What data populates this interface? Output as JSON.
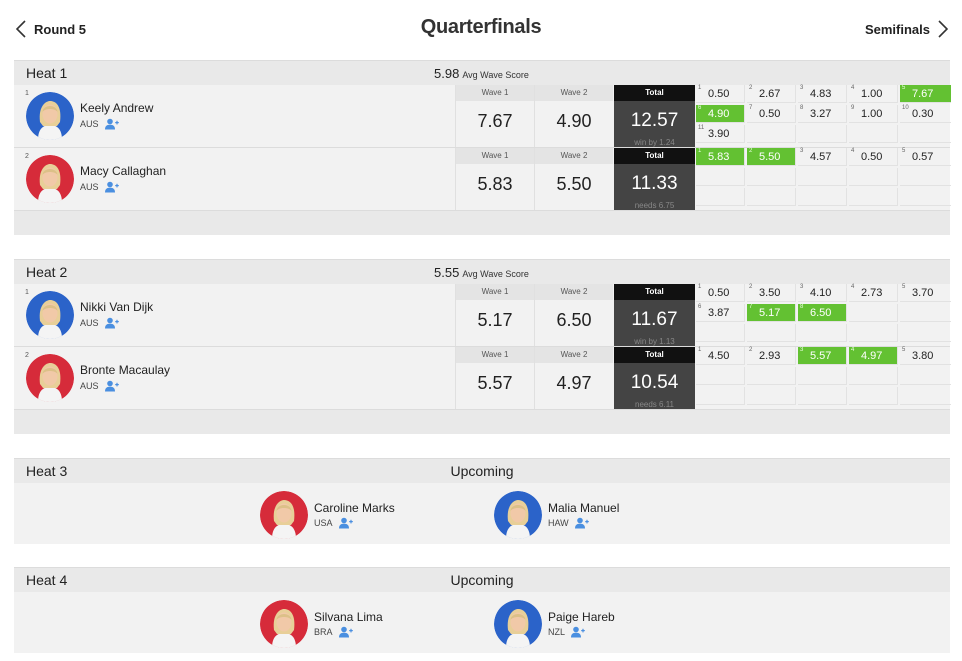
{
  "nav": {
    "prev_label": "Round 5",
    "title": "Quarterfinals",
    "next_label": "Semifinals"
  },
  "labels": {
    "wave1": "Wave 1",
    "wave2": "Wave 2",
    "total": "Total",
    "avg": "Avg Wave Score",
    "upcoming": "Upcoming"
  },
  "heats": [
    {
      "name": "Heat 1",
      "avg": "5.98",
      "surfers": [
        {
          "seed": "1",
          "name": "Keely Andrew",
          "country": "AUS",
          "jersey": "blue",
          "wave1": "7.67",
          "wave2": "4.90",
          "total": "12.57",
          "note": "win by 1.24",
          "waves": [
            {
              "n": "1",
              "s": "0.50",
              "hl": false
            },
            {
              "n": "2",
              "s": "2.67",
              "hl": false
            },
            {
              "n": "3",
              "s": "4.83",
              "hl": false
            },
            {
              "n": "4",
              "s": "1.00",
              "hl": false
            },
            {
              "n": "5",
              "s": "7.67",
              "hl": true
            },
            {
              "n": "6",
              "s": "4.90",
              "hl": true
            },
            {
              "n": "7",
              "s": "0.50",
              "hl": false
            },
            {
              "n": "8",
              "s": "3.27",
              "hl": false
            },
            {
              "n": "9",
              "s": "1.00",
              "hl": false
            },
            {
              "n": "10",
              "s": "0.30",
              "hl": false
            },
            {
              "n": "11",
              "s": "3.90",
              "hl": false
            }
          ]
        },
        {
          "seed": "2",
          "name": "Macy Callaghan",
          "country": "AUS",
          "jersey": "red",
          "wave1": "5.83",
          "wave2": "5.50",
          "total": "11.33",
          "note": "needs 6.75",
          "waves": [
            {
              "n": "1",
              "s": "5.83",
              "hl": true
            },
            {
              "n": "2",
              "s": "5.50",
              "hl": true
            },
            {
              "n": "3",
              "s": "4.57",
              "hl": false
            },
            {
              "n": "4",
              "s": "0.50",
              "hl": false
            },
            {
              "n": "5",
              "s": "0.57",
              "hl": false
            }
          ]
        }
      ]
    },
    {
      "name": "Heat 2",
      "avg": "5.55",
      "surfers": [
        {
          "seed": "1",
          "name": "Nikki Van Dijk",
          "country": "AUS",
          "jersey": "blue",
          "wave1": "5.17",
          "wave2": "6.50",
          "total": "11.67",
          "note": "win by 1.13",
          "waves": [
            {
              "n": "1",
              "s": "0.50",
              "hl": false
            },
            {
              "n": "2",
              "s": "3.50",
              "hl": false
            },
            {
              "n": "3",
              "s": "4.10",
              "hl": false
            },
            {
              "n": "4",
              "s": "2.73",
              "hl": false
            },
            {
              "n": "5",
              "s": "3.70",
              "hl": false
            },
            {
              "n": "6",
              "s": "3.87",
              "hl": false
            },
            {
              "n": "7",
              "s": "5.17",
              "hl": true
            },
            {
              "n": "8",
              "s": "6.50",
              "hl": true
            }
          ]
        },
        {
          "seed": "2",
          "name": "Bronte Macaulay",
          "country": "AUS",
          "jersey": "red",
          "wave1": "5.57",
          "wave2": "4.97",
          "total": "10.54",
          "note": "needs 6.11",
          "waves": [
            {
              "n": "1",
              "s": "4.50",
              "hl": false
            },
            {
              "n": "2",
              "s": "2.93",
              "hl": false
            },
            {
              "n": "3",
              "s": "5.57",
              "hl": true
            },
            {
              "n": "4",
              "s": "4.97",
              "hl": true
            },
            {
              "n": "5",
              "s": "3.80",
              "hl": false
            }
          ]
        }
      ]
    }
  ],
  "upcoming_heats": [
    {
      "name": "Heat 3",
      "status": "Upcoming",
      "surfers": [
        {
          "name": "Caroline Marks",
          "country": "USA",
          "jersey": "red"
        },
        {
          "name": "Malia Manuel",
          "country": "HAW",
          "jersey": "blue"
        }
      ]
    },
    {
      "name": "Heat 4",
      "status": "Upcoming",
      "surfers": [
        {
          "name": "Silvana Lima",
          "country": "BRA",
          "jersey": "red"
        },
        {
          "name": "Paige Hareb",
          "country": "NZL",
          "jersey": "blue"
        }
      ]
    }
  ],
  "colors": {
    "highlight": "#63c132",
    "jersey_blue": "#2b63c9",
    "jersey_red": "#d62b3a",
    "total_bg": "#444444",
    "total_header": "#111111"
  },
  "icons": [
    "chevron-left-icon",
    "chevron-right-icon",
    "follow-icon"
  ]
}
